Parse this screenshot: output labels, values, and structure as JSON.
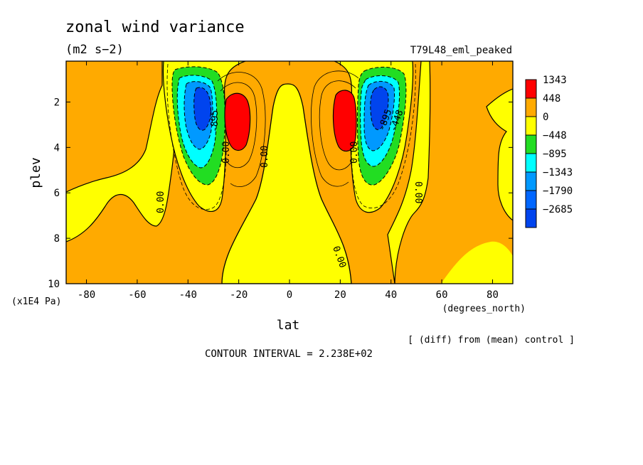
{
  "chart_data": {
    "type": "heatmap",
    "title": "zonal wind variance",
    "units": "(m2 s−2)",
    "experiment": "T79L48_eml_peaked",
    "xlabel": "lat",
    "x_units": "(degrees_north)",
    "ylabel": "plev",
    "y_units": "(x1E4 Pa)",
    "xlim": [
      -88,
      88
    ],
    "ylim": [
      10,
      0.2
    ],
    "x_ticks": [
      "-80",
      "-60",
      "-40",
      "-20",
      "0",
      "20",
      "40",
      "60",
      "80"
    ],
    "y_ticks": [
      "2",
      "4",
      "6",
      "8",
      "10"
    ],
    "legend": {
      "placement": "right",
      "levels": [
        "1343",
        "448",
        "0",
        "−448",
        "−895",
        "−1343",
        "−1790",
        "−2685"
      ],
      "colors": [
        "#ff0000",
        "#ffaa00",
        "#ffff00",
        "#22dd22",
        "#00ffff",
        "#0099ff",
        "#0066ff",
        "#0044ee"
      ]
    },
    "contour_labels": [
      "0.00",
      "0.00",
      "0.00",
      "0.00",
      "0.00",
      "0.00",
      "0.00",
      "-895",
      "-448",
      "-895",
      "-448"
    ],
    "contour_interval_text": "CONTOUR INTERVAL = 2.238E+02",
    "diff_text": "[ (diff) from (mean) control ]",
    "features": [
      {
        "name": "SH negative core",
        "lat": -34,
        "plev": 2.3,
        "value": -2685
      },
      {
        "name": "SH positive core",
        "lat": -22,
        "plev": 2.5,
        "value": 1343
      },
      {
        "name": "NH positive core",
        "lat": 23,
        "plev": 2.4,
        "value": 1343
      },
      {
        "name": "NH negative core",
        "lat": 35,
        "plev": 2.2,
        "value": -2685
      }
    ]
  }
}
